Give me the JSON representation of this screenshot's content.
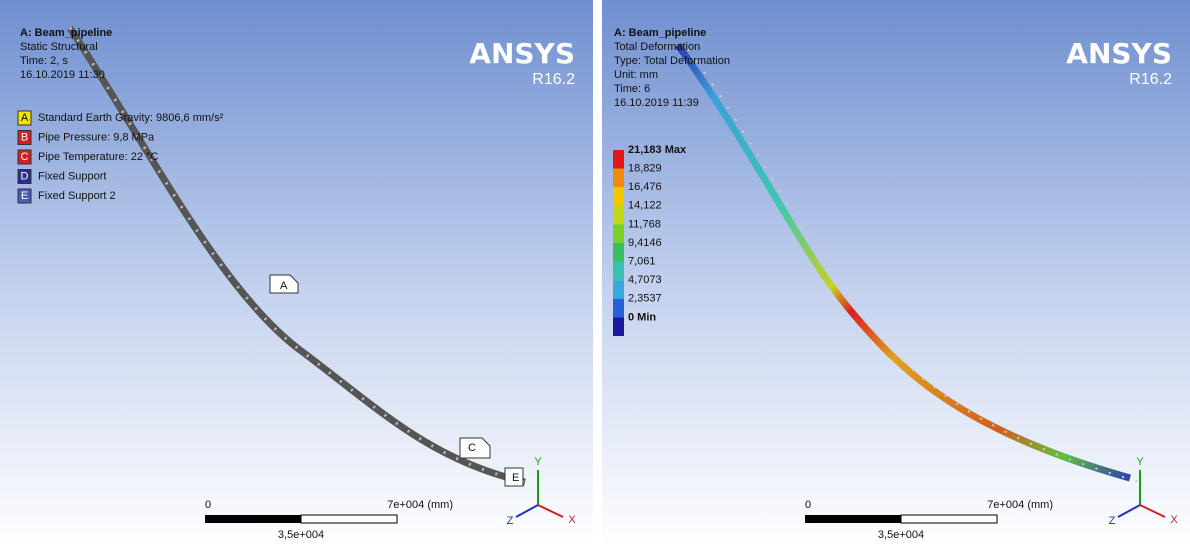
{
  "panels": [
    {
      "header": {
        "title": "A: Beam_pipeline",
        "lines": [
          "Static Structural",
          "Time: 2, s",
          "16.10.2019 11:30"
        ]
      },
      "logo": {
        "name": "ANSYS",
        "version": "R16.2"
      },
      "loads": [
        {
          "key": "A",
          "label": "Standard Earth Gravity: 9806,6 mm/s²"
        },
        {
          "key": "B",
          "label": "Pipe Pressure: 9,8 MPa"
        },
        {
          "key": "C",
          "label": "Pipe Temperature: 22 °C"
        },
        {
          "key": "D",
          "label": "Fixed Support"
        },
        {
          "key": "E",
          "label": "Fixed Support 2"
        }
      ],
      "scale": {
        "start": "0",
        "end": "7e+004 (mm)",
        "mid": "3,5e+004"
      },
      "triad": {
        "y": "Y",
        "x": "X",
        "z": "Z"
      }
    },
    {
      "header": {
        "title": "A: Beam_pipeline",
        "lines": [
          "Total Deformation",
          "Type: Total Deformation",
          "Unit: mm",
          "Time: 6",
          "16.10.2019 11:39"
        ]
      },
      "logo": {
        "name": "ANSYS",
        "version": "R16.2"
      },
      "legend": [
        "21,183 Max",
        "18,829",
        "16,476",
        "14,122",
        "11,768",
        "9,4146",
        "7,061",
        "4,7073",
        "2,3537",
        "0 Min"
      ],
      "scale": {
        "start": "0",
        "end": "7e+004 (mm)",
        "mid": "3,5e+004"
      },
      "triad": {
        "y": "Y",
        "x": "X",
        "z": "Z"
      }
    }
  ]
}
